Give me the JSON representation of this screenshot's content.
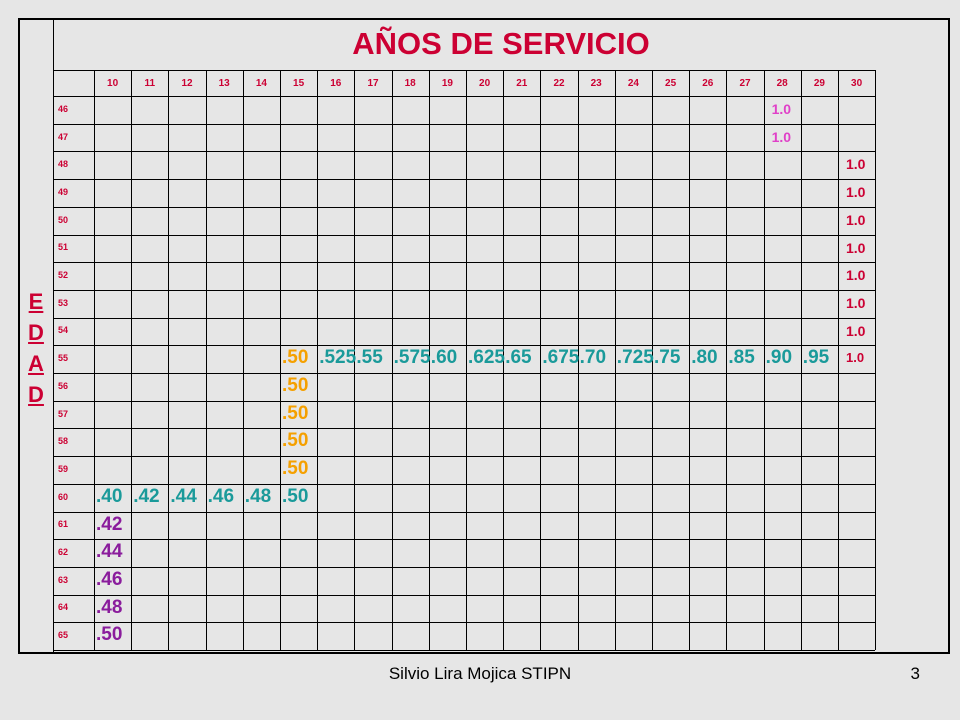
{
  "title": "AÑOS DE SERVICIO",
  "side_label": [
    "E",
    "D",
    "A",
    "D"
  ],
  "years": [
    "10",
    "11",
    "12",
    "13",
    "14",
    "15",
    "16",
    "17",
    "18",
    "19",
    "20",
    "21",
    "22",
    "23",
    "24",
    "25",
    "26",
    "27",
    "28",
    "29",
    "30"
  ],
  "ages": [
    "46",
    "47",
    "48",
    "49",
    "50",
    "51",
    "52",
    "53",
    "54",
    "55",
    "56",
    "57",
    "58",
    "59",
    "60",
    "61",
    "62",
    "63",
    "64",
    "65"
  ],
  "colors": {
    "red": "#cc0033",
    "pink": "#e040c8",
    "orange": "#f5a000",
    "teal": "#1a9a9a",
    "purple": "#8a1c9c",
    "dark": "#cc0033"
  },
  "cells": [
    {
      "age": "46",
      "year": "28",
      "text": "1.0",
      "color": "pink"
    },
    {
      "age": "47",
      "year": "28",
      "text": "1.0",
      "color": "pink"
    },
    {
      "age": "48",
      "year": "30",
      "text": "1.0",
      "color": "dark"
    },
    {
      "age": "49",
      "year": "30",
      "text": "1.0",
      "color": "dark"
    },
    {
      "age": "50",
      "year": "30",
      "text": "1.0",
      "color": "dark"
    },
    {
      "age": "51",
      "year": "30",
      "text": "1.0",
      "color": "dark"
    },
    {
      "age": "52",
      "year": "30",
      "text": "1.0",
      "color": "dark"
    },
    {
      "age": "53",
      "year": "30",
      "text": "1.0",
      "color": "dark"
    },
    {
      "age": "54",
      "year": "30",
      "text": "1.0",
      "color": "dark"
    },
    {
      "age": "55",
      "year": "15",
      "text": ".50",
      "color": "orange"
    },
    {
      "age": "55",
      "year": "16",
      "text": ".525",
      "color": "teal"
    },
    {
      "age": "55",
      "year": "17",
      "text": ".55",
      "color": "teal"
    },
    {
      "age": "55",
      "year": "18",
      "text": ".575",
      "color": "teal"
    },
    {
      "age": "55",
      "year": "19",
      "text": ".60",
      "color": "teal"
    },
    {
      "age": "55",
      "year": "20",
      "text": ".625",
      "color": "teal"
    },
    {
      "age": "55",
      "year": "21",
      "text": ".65",
      "color": "teal"
    },
    {
      "age": "55",
      "year": "22",
      "text": ".675",
      "color": "teal"
    },
    {
      "age": "55",
      "year": "23",
      "text": ".70",
      "color": "teal"
    },
    {
      "age": "55",
      "year": "24",
      "text": ".725",
      "color": "teal"
    },
    {
      "age": "55",
      "year": "25",
      "text": ".75",
      "color": "teal"
    },
    {
      "age": "55",
      "year": "26",
      "text": ".80",
      "color": "teal"
    },
    {
      "age": "55",
      "year": "27",
      "text": ".85",
      "color": "teal"
    },
    {
      "age": "55",
      "year": "28",
      "text": ".90",
      "color": "teal"
    },
    {
      "age": "55",
      "year": "29",
      "text": ".95",
      "color": "teal"
    },
    {
      "age": "55",
      "year": "30",
      "text": "1.0",
      "color": "dark"
    },
    {
      "age": "56",
      "year": "15",
      "text": ".50",
      "color": "orange"
    },
    {
      "age": "57",
      "year": "15",
      "text": ".50",
      "color": "orange"
    },
    {
      "age": "58",
      "year": "15",
      "text": ".50",
      "color": "orange"
    },
    {
      "age": "59",
      "year": "15",
      "text": ".50",
      "color": "orange"
    },
    {
      "age": "60",
      "year": "10",
      "text": ".40",
      "color": "teal"
    },
    {
      "age": "60",
      "year": "11",
      "text": ".42",
      "color": "teal"
    },
    {
      "age": "60",
      "year": "12",
      "text": ".44",
      "color": "teal"
    },
    {
      "age": "60",
      "year": "13",
      "text": ".46",
      "color": "teal"
    },
    {
      "age": "60",
      "year": "14",
      "text": ".48",
      "color": "teal"
    },
    {
      "age": "60",
      "year": "15",
      "text": ".50",
      "color": "teal"
    },
    {
      "age": "61",
      "year": "10",
      "text": ".42",
      "color": "purple"
    },
    {
      "age": "62",
      "year": "10",
      "text": ".44",
      "color": "purple"
    },
    {
      "age": "63",
      "year": "10",
      "text": ".46",
      "color": "purple"
    },
    {
      "age": "64",
      "year": "10",
      "text": ".48",
      "color": "purple"
    },
    {
      "age": "65",
      "year": "10",
      "text": ".50",
      "color": "purple"
    }
  ],
  "footer": {
    "author": "Silvio Lira Mojica  STIPN",
    "page": "3"
  }
}
